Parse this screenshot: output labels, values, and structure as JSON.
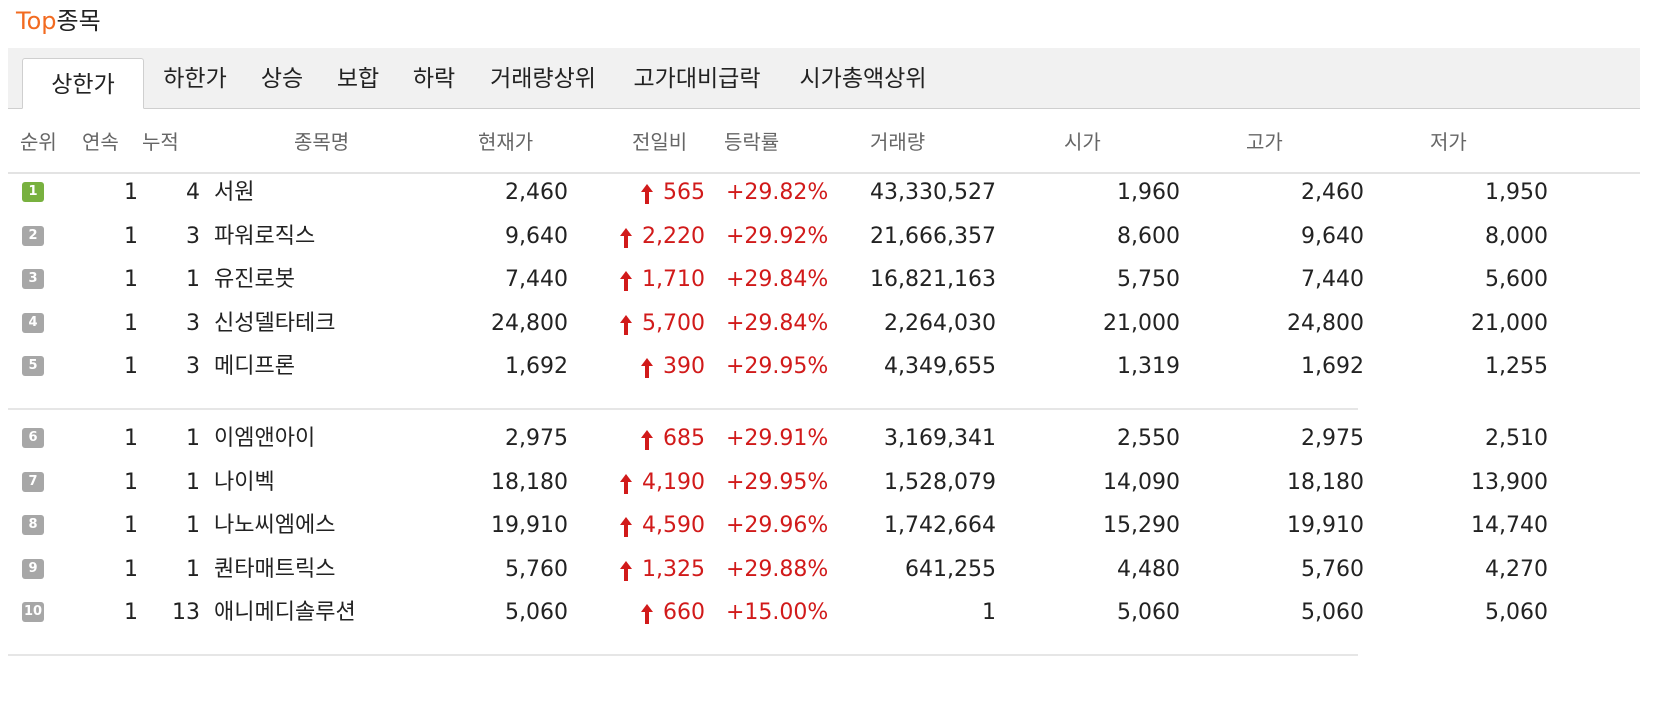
{
  "title": {
    "accent": "Top",
    "rest": "종목"
  },
  "tabs": [
    {
      "label": "상한가",
      "active": true
    },
    {
      "label": "하한가",
      "active": false
    },
    {
      "label": "상승",
      "active": false
    },
    {
      "label": "보합",
      "active": false
    },
    {
      "label": "하락",
      "active": false
    },
    {
      "label": "거래량상위",
      "active": false
    },
    {
      "label": "고가대비급락",
      "active": false
    },
    {
      "label": "시가총액상위",
      "active": false
    }
  ],
  "columns": [
    "순위",
    "연속",
    "누적",
    "종목명",
    "현재가",
    "전일비",
    "등락률",
    "거래량",
    "시가",
    "고가",
    "저가"
  ],
  "colors": {
    "up": "#d11a1a",
    "accent": "#f26b21",
    "rank_first": "#78b13f",
    "rank_other": "#a7a7a7"
  },
  "icons": {
    "rank": "rank-badge-icon",
    "change": "up-arrow-icon"
  },
  "rows": [
    {
      "rank": "1",
      "streak": "1",
      "cumulative": "4",
      "name": "서원",
      "price": "2,460",
      "change": "565",
      "rate": "+29.82%",
      "volume": "43,330,527",
      "open": "1,960",
      "high": "2,460",
      "low": "1,950"
    },
    {
      "rank": "2",
      "streak": "1",
      "cumulative": "3",
      "name": "파워로직스",
      "price": "9,640",
      "change": "2,220",
      "rate": "+29.92%",
      "volume": "21,666,357",
      "open": "8,600",
      "high": "9,640",
      "low": "8,000"
    },
    {
      "rank": "3",
      "streak": "1",
      "cumulative": "1",
      "name": "유진로봇",
      "price": "7,440",
      "change": "1,710",
      "rate": "+29.84%",
      "volume": "16,821,163",
      "open": "5,750",
      "high": "7,440",
      "low": "5,600"
    },
    {
      "rank": "4",
      "streak": "1",
      "cumulative": "3",
      "name": "신성델타테크",
      "price": "24,800",
      "change": "5,700",
      "rate": "+29.84%",
      "volume": "2,264,030",
      "open": "21,000",
      "high": "24,800",
      "low": "21,000"
    },
    {
      "rank": "5",
      "streak": "1",
      "cumulative": "3",
      "name": "메디프론",
      "price": "1,692",
      "change": "390",
      "rate": "+29.95%",
      "volume": "4,349,655",
      "open": "1,319",
      "high": "1,692",
      "low": "1,255"
    },
    {
      "rank": "6",
      "streak": "1",
      "cumulative": "1",
      "name": "이엠앤아이",
      "price": "2,975",
      "change": "685",
      "rate": "+29.91%",
      "volume": "3,169,341",
      "open": "2,550",
      "high": "2,975",
      "low": "2,510"
    },
    {
      "rank": "7",
      "streak": "1",
      "cumulative": "1",
      "name": "나이벡",
      "price": "18,180",
      "change": "4,190",
      "rate": "+29.95%",
      "volume": "1,528,079",
      "open": "14,090",
      "high": "18,180",
      "low": "13,900"
    },
    {
      "rank": "8",
      "streak": "1",
      "cumulative": "1",
      "name": "나노씨엠에스",
      "price": "19,910",
      "change": "4,590",
      "rate": "+29.96%",
      "volume": "1,742,664",
      "open": "15,290",
      "high": "19,910",
      "low": "14,740"
    },
    {
      "rank": "9",
      "streak": "1",
      "cumulative": "1",
      "name": "퀀타매트릭스",
      "price": "5,760",
      "change": "1,325",
      "rate": "+29.88%",
      "volume": "641,255",
      "open": "4,480",
      "high": "5,760",
      "low": "4,270"
    },
    {
      "rank": "10",
      "streak": "1",
      "cumulative": "13",
      "name": "애니메디솔루션",
      "price": "5,060",
      "change": "660",
      "rate": "+15.00%",
      "volume": "1",
      "open": "5,060",
      "high": "5,060",
      "low": "5,060"
    }
  ]
}
